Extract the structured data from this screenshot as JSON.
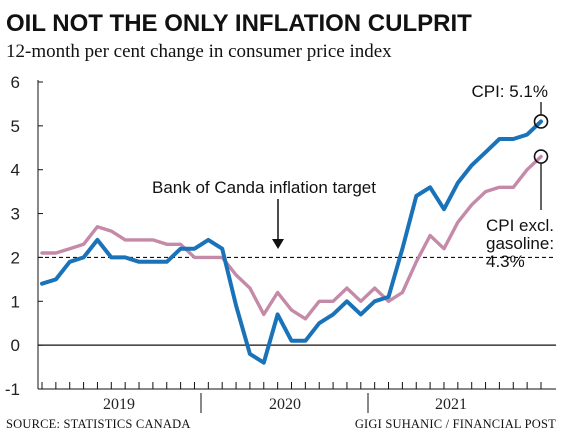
{
  "chart_data": {
    "type": "line",
    "title": "OIL NOT THE ONLY INFLATION CULPRIT",
    "subtitle": "12-month per cent change in consumer price index",
    "ylim": [
      -1,
      6
    ],
    "yticks": [
      -1,
      0,
      1,
      2,
      3,
      4,
      5,
      6
    ],
    "year_labels": [
      "2019",
      "2020",
      "2021"
    ],
    "grid": false,
    "colors": {
      "cpi": "#1a73b8",
      "cpi_excl": "#c48aa8",
      "axis": "#111111"
    },
    "series": [
      {
        "key": "cpi",
        "values": [
          1.4,
          1.5,
          1.9,
          2.0,
          2.4,
          2.0,
          2.0,
          1.9,
          1.9,
          1.9,
          2.2,
          2.2,
          2.4,
          2.2,
          0.9,
          -0.2,
          -0.4,
          0.7,
          0.1,
          0.1,
          0.5,
          0.7,
          1.0,
          0.7,
          1.0,
          1.1,
          2.2,
          3.4,
          3.6,
          3.1,
          3.7,
          4.1,
          4.4,
          4.7,
          4.7,
          4.8,
          5.1
        ]
      },
      {
        "key": "cpi_excl",
        "values": [
          2.1,
          2.1,
          2.2,
          2.3,
          2.7,
          2.6,
          2.4,
          2.4,
          2.4,
          2.3,
          2.3,
          2.0,
          2.0,
          2.0,
          1.6,
          1.3,
          0.7,
          1.2,
          0.8,
          0.6,
          1.0,
          1.0,
          1.3,
          1.0,
          1.3,
          1.0,
          1.2,
          1.9,
          2.5,
          2.2,
          2.8,
          3.2,
          3.5,
          3.6,
          3.6,
          4.0,
          4.3
        ]
      }
    ],
    "target": {
      "value": 2,
      "label": "Bank of Canda inflation target"
    },
    "annotations": {
      "cpi": "CPI: 5.1%",
      "cpi_excl": [
        "CPI excl.",
        "gasoline:",
        "4.3%"
      ]
    }
  },
  "footer": {
    "source": "SOURCE: STATISTICS CANADA",
    "credit": "GIGI SUHANIC / FINANCIAL POST"
  }
}
